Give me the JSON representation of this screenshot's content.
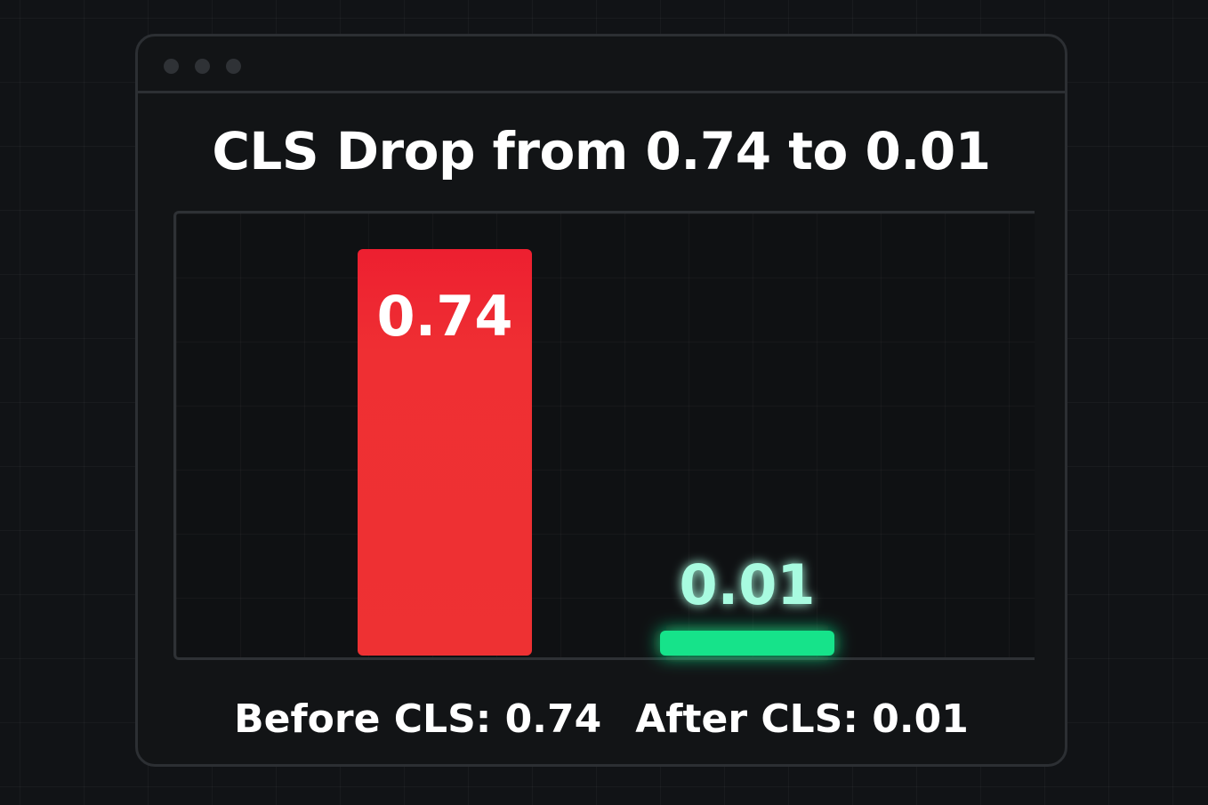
{
  "window": {
    "title_dots": [
      "close-dot",
      "minimize-dot",
      "maximize-dot"
    ]
  },
  "chart_data": {
    "type": "bar",
    "title": "CLS Drop from 0.74 to 0.01",
    "categories": [
      "Before",
      "After"
    ],
    "values": [
      0.74,
      0.01
    ],
    "data_labels": [
      "0.74",
      "0.01"
    ],
    "ylim": [
      0,
      0.74
    ],
    "grid": true,
    "colors": [
      "#ef2f33",
      "#12e38a"
    ],
    "label_colors": [
      "#ffffff",
      "#a8fbe0"
    ],
    "xlabel": "",
    "ylabel": ""
  },
  "footer": {
    "before_label": "Before CLS: 0.74",
    "after_label": "After CLS: 0.01"
  }
}
